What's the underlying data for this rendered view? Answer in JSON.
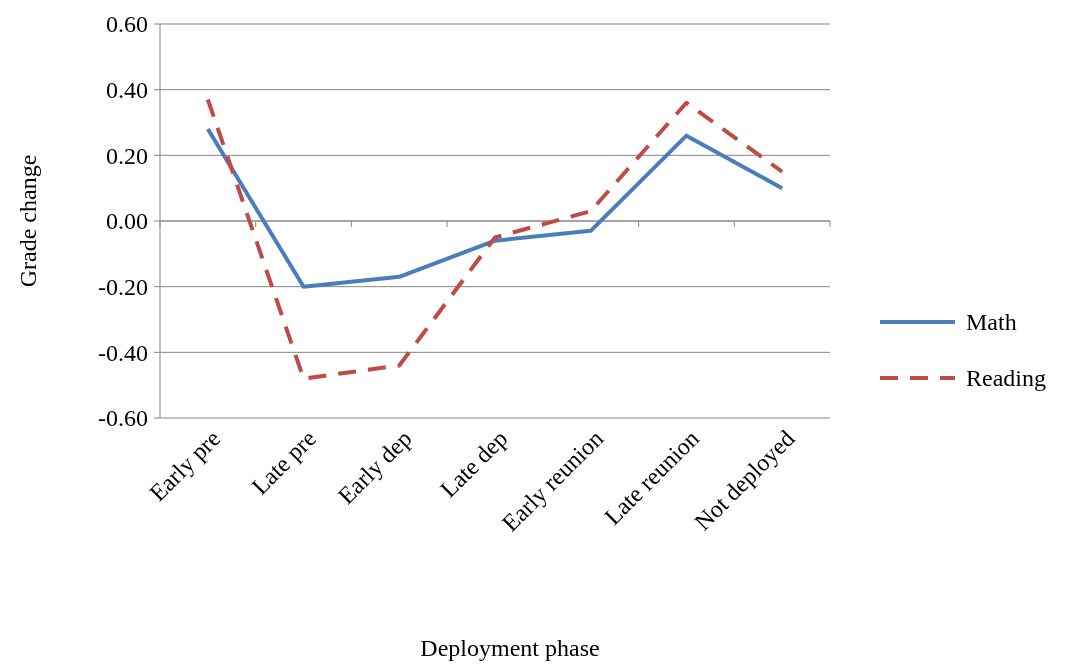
{
  "chart_data": {
    "type": "line",
    "xlabel": "Deployment phase",
    "ylabel": "Grade change",
    "categories": [
      "Early pre",
      "Late pre",
      "Early dep",
      "Late dep",
      "Early reunion",
      "Late reunion",
      "Not deployed"
    ],
    "series": [
      {
        "name": "Math",
        "color": "#4a7ebb",
        "line_style": "solid",
        "values": [
          0.28,
          -0.2,
          -0.17,
          -0.06,
          -0.03,
          0.26,
          0.1
        ]
      },
      {
        "name": "Reading",
        "color": "#be4b48",
        "line_style": "dashed",
        "values": [
          0.37,
          -0.48,
          -0.44,
          -0.05,
          0.03,
          0.36,
          0.15
        ]
      }
    ],
    "ylim": [
      -0.6,
      0.6
    ],
    "yticks": [
      {
        "value": -0.6,
        "label": "-0.60"
      },
      {
        "value": -0.4,
        "label": "-0.40"
      },
      {
        "value": -0.2,
        "label": "-0.20"
      },
      {
        "value": 0,
        "label": "0.00"
      },
      {
        "value": 0.2,
        "label": "0.20"
      },
      {
        "value": 0.4,
        "label": "0.40"
      },
      {
        "value": 0.6,
        "label": "0.60"
      }
    ],
    "grid": "y",
    "legend": "right"
  }
}
